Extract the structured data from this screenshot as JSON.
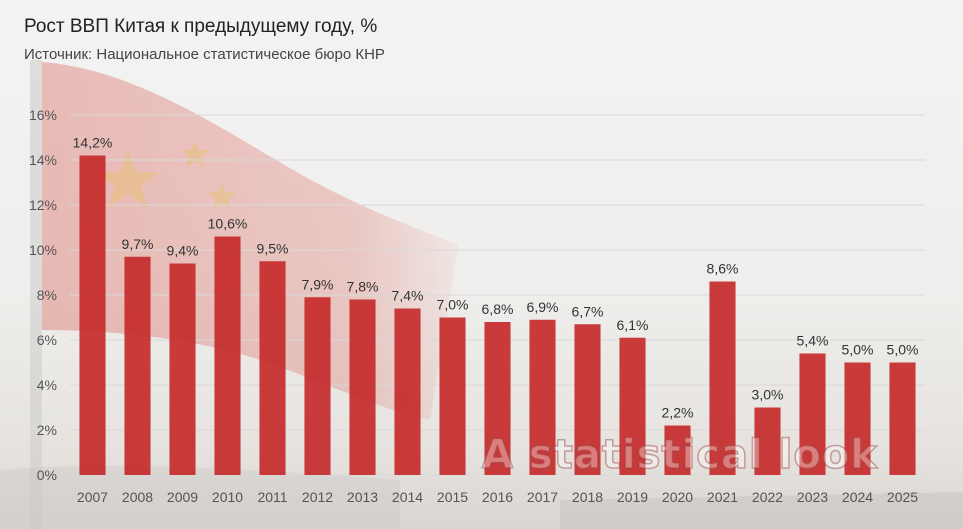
{
  "header": {
    "title": "Рост ВВП Китая к предыдущему году, %",
    "subtitle": "Источник: Национальное статистическое бюро КНР"
  },
  "watermark": "A statistical look",
  "colors": {
    "bar": "#c62b2b",
    "grid": "#d9d9d9",
    "flag": "#d33a2e",
    "star": "#e8c23a"
  },
  "chart_data": {
    "type": "bar",
    "title": "Рост ВВП Китая к предыдущему году, %",
    "xlabel": "",
    "ylabel": "",
    "categories": [
      "2007",
      "2008",
      "2009",
      "2010",
      "2011",
      "2012",
      "2013",
      "2014",
      "2015",
      "2016",
      "2017",
      "2018",
      "2019",
      "2020",
      "2021",
      "2022",
      "2023",
      "2024",
      "2025"
    ],
    "values": [
      14.2,
      9.7,
      9.4,
      10.6,
      9.5,
      7.9,
      7.8,
      7.4,
      7.0,
      6.8,
      6.9,
      6.7,
      6.1,
      2.2,
      8.6,
      3.0,
      5.4,
      5.0,
      5.0
    ],
    "data_labels": [
      "14,2%",
      "9,7%",
      "9,4%",
      "10,6%",
      "9,5%",
      "7,9%",
      "7,8%",
      "7,4%",
      "7,0%",
      "6,8%",
      "6,9%",
      "6,7%",
      "6,1%",
      "2,2%",
      "8,6%",
      "3,0%",
      "5,4%",
      "5,0%",
      "5,0%"
    ],
    "ylim": [
      0,
      16
    ],
    "yticks": [
      0,
      2,
      4,
      6,
      8,
      10,
      12,
      14,
      16
    ],
    "ytick_labels": [
      "0%",
      "2%",
      "4%",
      "6%",
      "8%",
      "10%",
      "12%",
      "14%",
      "16%"
    ],
    "grid": true,
    "legend": "none"
  }
}
